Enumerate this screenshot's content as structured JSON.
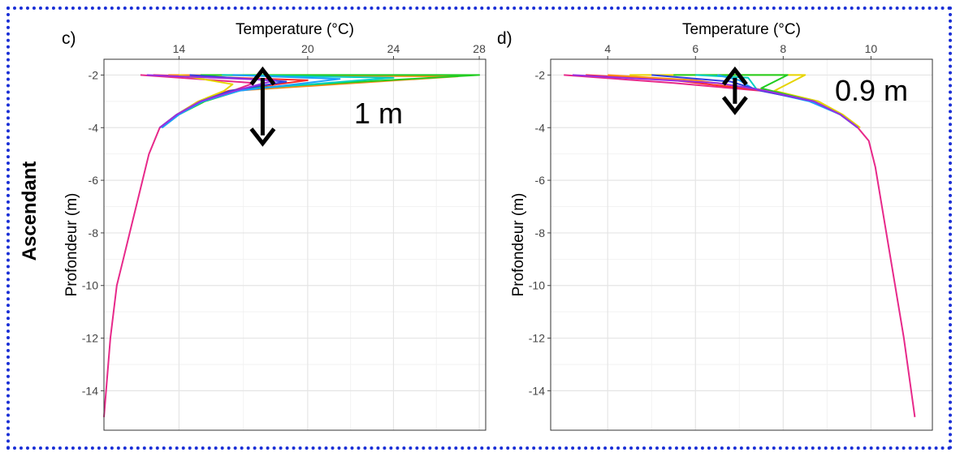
{
  "row_label": "Ascendant",
  "chart_data": [
    {
      "panel_label": "c)",
      "type": "line",
      "xlabel": "Temperature (°C)",
      "ylabel": "Profondeur (m)",
      "xaxis_position": "top",
      "xlim": [
        10.5,
        28.3
      ],
      "ylim": [
        -15.5,
        -1.4
      ],
      "xticks": [
        14,
        20,
        24,
        28
      ],
      "yticks": [
        -2,
        -4,
        -6,
        -8,
        -10,
        -12,
        -14
      ],
      "xticklabels": [
        "14",
        "20",
        "24",
        "28"
      ],
      "yticklabels": [
        "-2",
        "-4",
        "-6",
        "-8",
        "-10",
        "-12",
        "-14"
      ],
      "grid": true,
      "annotation": {
        "text": "1 m",
        "arrow_x": 17.9,
        "arrow_y": [
          -1.8,
          -4.6
        ]
      },
      "series": [
        {
          "color": "#e7298a",
          "x": [
            12.2,
            17.5,
            16.5,
            15.0,
            13.9,
            13.1,
            12.6,
            12.3,
            12.0,
            11.7,
            11.4,
            11.1,
            10.8,
            10.5
          ],
          "y": [
            -2.0,
            -2.3,
            -2.6,
            -3.0,
            -3.5,
            -4.0,
            -5.0,
            -6.0,
            -7.0,
            -8.0,
            -9.0,
            -10.0,
            -12.0,
            -15.0
          ]
        },
        {
          "color": "#ff2a2a",
          "x": [
            12.8,
            20.0,
            16.3,
            14.9,
            13.9,
            13.1
          ],
          "y": [
            -2.0,
            -2.2,
            -2.6,
            -3.0,
            -3.5,
            -4.0
          ]
        },
        {
          "color": "#ff8c1a",
          "x": [
            13.5,
            27.0,
            16.6,
            15.0,
            13.9,
            13.1
          ],
          "y": [
            -2.0,
            -2.05,
            -2.6,
            -3.0,
            -3.5,
            -4.0
          ]
        },
        {
          "color": "#e6d400",
          "x": [
            14.0,
            16.5,
            16.1,
            14.9,
            13.9,
            13.1
          ],
          "y": [
            -2.0,
            -2.35,
            -2.6,
            -3.0,
            -3.5,
            -4.0
          ]
        },
        {
          "color": "#22cc22",
          "x": [
            15.0,
            28.0,
            17.2,
            15.2,
            14.0,
            13.2
          ],
          "y": [
            -2.0,
            -2.0,
            -2.5,
            -3.0,
            -3.5,
            -4.0
          ]
        },
        {
          "color": "#00d0c0",
          "x": [
            16.0,
            24.0,
            17.0,
            15.1,
            14.0,
            13.2
          ],
          "y": [
            -2.0,
            -2.1,
            -2.55,
            -3.0,
            -3.5,
            -4.0
          ]
        },
        {
          "color": "#1ea0ff",
          "x": [
            16.5,
            21.5,
            16.8,
            15.1,
            14.0,
            13.2
          ],
          "y": [
            -2.0,
            -2.15,
            -2.6,
            -3.0,
            -3.5,
            -4.0
          ]
        },
        {
          "color": "#3040e0",
          "x": [
            14.5,
            19.0,
            16.4,
            15.0,
            13.9,
            13.1
          ],
          "y": [
            -2.0,
            -2.25,
            -2.6,
            -3.0,
            -3.5,
            -4.0
          ]
        },
        {
          "color": "#9a30e0",
          "x": [
            12.5,
            18.5,
            16.6,
            15.0,
            13.9,
            13.1
          ],
          "y": [
            -2.0,
            -2.2,
            -2.6,
            -3.0,
            -3.5,
            -4.0
          ]
        }
      ]
    },
    {
      "panel_label": "d)",
      "type": "line",
      "xlabel": "Temperature (°C)",
      "ylabel": "Profondeur (m)",
      "xaxis_position": "top",
      "xlim": [
        2.7,
        11.4
      ],
      "ylim": [
        -15.5,
        -1.4
      ],
      "xticks": [
        4,
        6,
        8,
        10
      ],
      "yticks": [
        -2,
        -4,
        -6,
        -8,
        -10,
        -12,
        -14
      ],
      "xticklabels": [
        "4",
        "6",
        "8",
        "10"
      ],
      "yticklabels": [
        "-2",
        "-4",
        "-6",
        "-8",
        "-10",
        "-12",
        "-14"
      ],
      "grid": true,
      "annotation": {
        "text": "0.9 m",
        "arrow_x": 6.9,
        "arrow_y": [
          -1.8,
          -3.4
        ]
      },
      "series": [
        {
          "color": "#e7298a",
          "x": [
            3.0,
            5.5,
            7.5,
            8.7,
            9.3,
            9.7,
            9.95,
            10.1,
            10.2,
            10.35,
            10.45,
            10.55,
            10.75,
            11.0
          ],
          "y": [
            -2.0,
            -2.3,
            -2.6,
            -3.0,
            -3.5,
            -4.0,
            -4.5,
            -5.5,
            -6.5,
            -8.0,
            -9.0,
            -10.0,
            -12.0,
            -15.0
          ]
        },
        {
          "color": "#ff2a2a",
          "x": [
            3.5,
            5.5,
            7.6,
            8.7,
            9.3,
            9.7
          ],
          "y": [
            -2.0,
            -2.2,
            -2.6,
            -3.0,
            -3.5,
            -4.0
          ]
        },
        {
          "color": "#ff8c1a",
          "x": [
            4.0,
            6.0,
            7.7,
            8.8,
            9.35,
            9.75
          ],
          "y": [
            -2.0,
            -2.2,
            -2.6,
            -3.0,
            -3.5,
            -4.0
          ]
        },
        {
          "color": "#e6d400",
          "x": [
            4.5,
            8.5,
            7.8,
            8.8,
            9.35,
            9.75
          ],
          "y": [
            -2.0,
            -2.0,
            -2.6,
            -3.0,
            -3.5,
            -4.0
          ]
        },
        {
          "color": "#22cc22",
          "x": [
            5.5,
            8.1,
            7.5,
            8.7,
            9.3,
            9.7
          ],
          "y": [
            -2.0,
            -2.0,
            -2.5,
            -3.0,
            -3.5,
            -4.0
          ]
        },
        {
          "color": "#00d0c0",
          "x": [
            6.0,
            7.2,
            7.4,
            8.7,
            9.3,
            9.7
          ],
          "y": [
            -2.0,
            -2.1,
            -2.55,
            -3.0,
            -3.5,
            -4.0
          ]
        },
        {
          "color": "#1ea0ff",
          "x": [
            6.5,
            7.0,
            7.3,
            8.6,
            9.3,
            9.7
          ],
          "y": [
            -2.0,
            -2.2,
            -2.5,
            -3.0,
            -3.5,
            -4.0
          ]
        },
        {
          "color": "#3040e0",
          "x": [
            5.0,
            6.8,
            7.5,
            8.7,
            9.3,
            9.7
          ],
          "y": [
            -2.0,
            -2.25,
            -2.6,
            -3.0,
            -3.5,
            -4.0
          ]
        },
        {
          "color": "#9a30e0",
          "x": [
            3.2,
            6.5,
            7.6,
            8.7,
            9.3,
            9.7
          ],
          "y": [
            -2.0,
            -2.3,
            -2.6,
            -3.0,
            -3.5,
            -4.0
          ]
        }
      ]
    }
  ]
}
